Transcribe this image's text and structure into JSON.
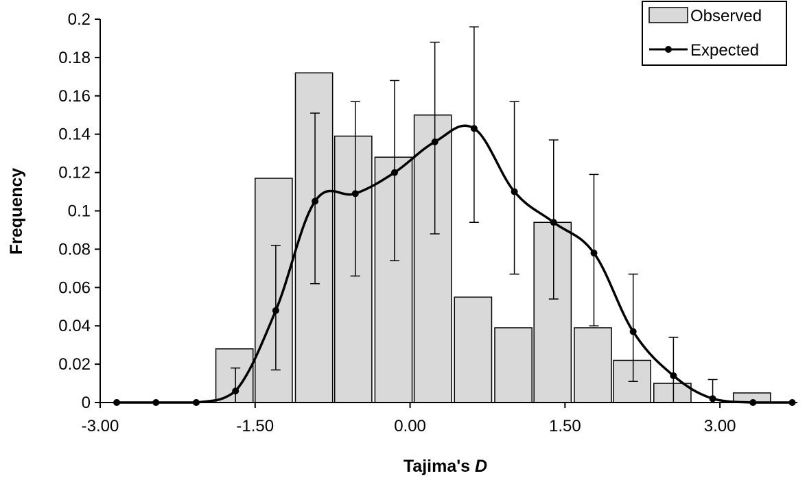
{
  "chart_data": {
    "type": "bar",
    "xlabel": {
      "text": "Tajima's ",
      "italic_part": "D"
    },
    "ylabel": "Frequency",
    "xlim": [
      -3.0,
      3.75
    ],
    "ylim": [
      0,
      0.2
    ],
    "x_ticks": [
      "-3.00",
      "-1.50",
      "0.00",
      "1.50",
      "3.00"
    ],
    "x_tick_values": [
      -3.0,
      -1.5,
      0.0,
      1.5,
      3.0
    ],
    "y_ticks": [
      "0",
      "0.02",
      "0.04",
      "0.06",
      "0.08",
      "0.1",
      "0.12",
      "0.14",
      "0.16",
      "0.18",
      "0.2"
    ],
    "y_tick_values": [
      0,
      0.02,
      0.04,
      0.06,
      0.08,
      0.1,
      0.12,
      0.14,
      0.16,
      0.18,
      0.2
    ],
    "grid": false,
    "legend_position": "top-right",
    "bar_width": 0.36,
    "series": [
      {
        "name": "Observed",
        "type": "bar",
        "color": "#d9d9d9",
        "x": [
          -1.7,
          -1.32,
          -0.93,
          -0.55,
          -0.16,
          0.22,
          0.61,
          1.0,
          1.38,
          1.77,
          2.15,
          2.54,
          2.92,
          3.31
        ],
        "values": [
          0.028,
          0.117,
          0.172,
          0.139,
          0.128,
          0.15,
          0.055,
          0.039,
          0.094,
          0.039,
          0.022,
          0.01,
          0.0,
          0.005
        ]
      },
      {
        "name": "Expected",
        "type": "line",
        "color": "#000000",
        "x": [
          -2.84,
          -2.46,
          -2.07,
          -1.69,
          -1.3,
          -0.92,
          -0.53,
          -0.15,
          0.24,
          0.62,
          1.01,
          1.39,
          1.78,
          2.16,
          2.55,
          2.93,
          3.32,
          3.7
        ],
        "values": [
          0.0,
          0.0,
          0.0,
          0.006,
          0.048,
          0.105,
          0.109,
          0.12,
          0.136,
          0.143,
          0.11,
          0.094,
          0.078,
          0.037,
          0.014,
          0.002,
          0.0,
          0.0
        ],
        "error_low": [
          0,
          0,
          0,
          0,
          0.017,
          0.062,
          0.066,
          0.074,
          0.088,
          0.094,
          0.067,
          0.054,
          0.04,
          0.011,
          0,
          0,
          0,
          0
        ],
        "error_high": [
          0,
          0,
          0,
          0.018,
          0.082,
          0.151,
          0.157,
          0.168,
          0.188,
          0.196,
          0.157,
          0.137,
          0.119,
          0.067,
          0.034,
          0.012,
          0,
          0
        ]
      }
    ]
  }
}
